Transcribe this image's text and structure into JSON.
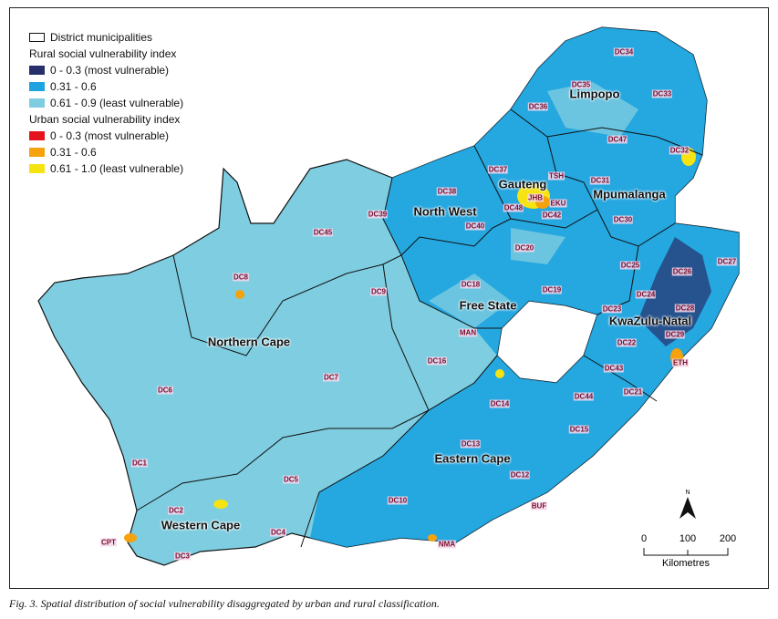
{
  "legend": {
    "boundary_label": "District municipalities",
    "rural_title": "Rural social vulnerability index",
    "rural_classes": [
      {
        "label": "0 - 0.3 (most vulnerable)",
        "color": "#262e6b"
      },
      {
        "label": "0.31 - 0.6",
        "color": "#1ca3e0"
      },
      {
        "label": "0.61 - 0.9 (least vulnerable)",
        "color": "#7ecde0"
      }
    ],
    "urban_title": "Urban social vulnerability index",
    "urban_classes": [
      {
        "label": "0 - 0.3 (most vulnerable)",
        "color": "#e3141b"
      },
      {
        "label": "0.31 - 0.6",
        "color": "#f5a20c"
      },
      {
        "label": "0.61 - 1.0 (least vulnerable)",
        "color": "#f5e312"
      }
    ]
  },
  "provinces": [
    "Limpopo",
    "Mpumalanga",
    "Gauteng",
    "North West",
    "Free State",
    "KwaZulu-Natal",
    "Northern Cape",
    "Eastern Cape",
    "Western Cape"
  ],
  "districts": [
    "DC34",
    "DC35",
    "DC33",
    "DC36",
    "DC47",
    "DC32",
    "DC37",
    "TSH",
    "DC31",
    "JHB",
    "EKU",
    "DC48",
    "DC42",
    "DC30",
    "DC38",
    "DC39",
    "DC40",
    "DC45",
    "DC20",
    "DC8",
    "DC9",
    "DC18",
    "DC19",
    "DC25",
    "DC26",
    "DC27",
    "DC24",
    "DC23",
    "DC28",
    "DC29",
    "DC22",
    "ETH",
    "DC43",
    "DC21",
    "DC44",
    "MAN",
    "DC16",
    "DC7",
    "DC6",
    "DC14",
    "DC15",
    "DC13",
    "DC1",
    "DC5",
    "DC12",
    "DC10",
    "BUF",
    "DC2",
    "DC4",
    "NMA",
    "CPT",
    "DC3"
  ],
  "north_arrow": "N",
  "scale": {
    "ticks": [
      "0",
      "100",
      "200"
    ],
    "unit": "Kilometres"
  },
  "caption": "Fig. 3. Spatial distribution of social vulnerability disaggregated by urban and rural classification."
}
